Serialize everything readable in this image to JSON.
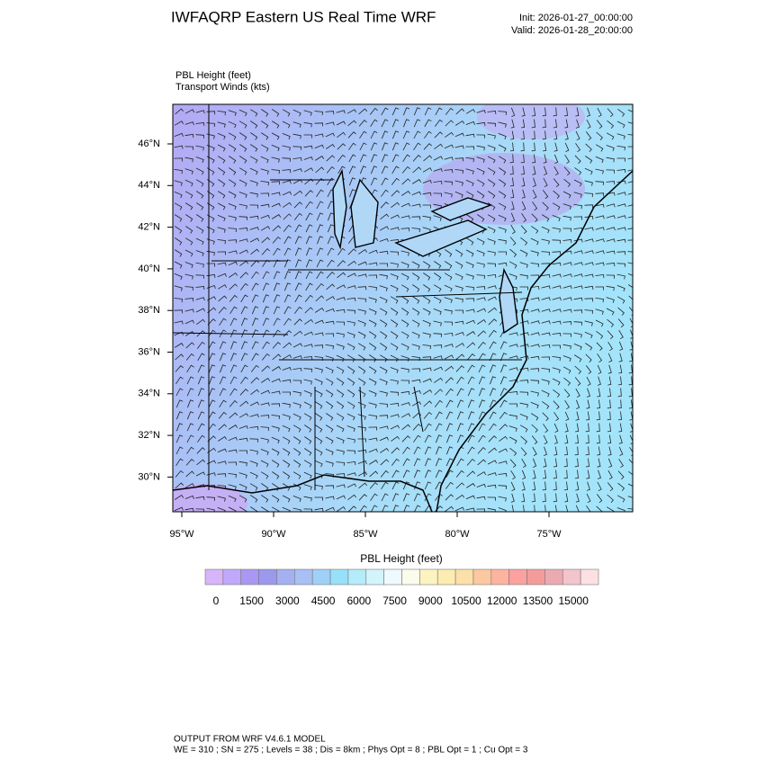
{
  "header": {
    "title": "IWFAQRP Eastern US Real Time WRF",
    "init": "Init: 2026-01-27_00:00:00",
    "valid": "Valid: 2026-01-28_20:00:00"
  },
  "field_labels": [
    "PBL Height   (feet)",
    "Transport Winds   (kts)"
  ],
  "map": {
    "lat_labels": [
      "46°N",
      "44°N",
      "42°N",
      "40°N",
      "38°N",
      "36°N",
      "34°N",
      "32°N",
      "30°N"
    ],
    "lon_labels": [
      "95°W",
      "90°W",
      "85°W",
      "80°W",
      "75°W"
    ]
  },
  "colorbar": {
    "title": "PBL Height  (feet)",
    "labels": [
      0,
      1500,
      3000,
      4500,
      6000,
      7500,
      9000,
      10500,
      12000,
      13500,
      15000
    ],
    "colors": [
      "#d8b4fa",
      "#c0a8fa",
      "#a898f4",
      "#9c98ee",
      "#a4b0f0",
      "#a8c0f4",
      "#a0d0f8",
      "#98e0fa",
      "#b4ecfa",
      "#d4f4fc",
      "#eefafe",
      "#fcfcec",
      "#fcf4c0",
      "#fcecb0",
      "#fce0a8",
      "#fcc8a0",
      "#fcb4a0",
      "#fca0a0",
      "#f49c9c",
      "#ecaab0",
      "#f4c4cc",
      "#fce0e4"
    ]
  },
  "footer": [
    "OUTPUT FROM WRF V4.6.1 MODEL",
    "WE = 310 ; SN = 275 ; Levels = 38 ; Dis = 8km ; Phys Opt = 8 ; PBL Opt = 1 ; Cu Opt = 3"
  ]
}
